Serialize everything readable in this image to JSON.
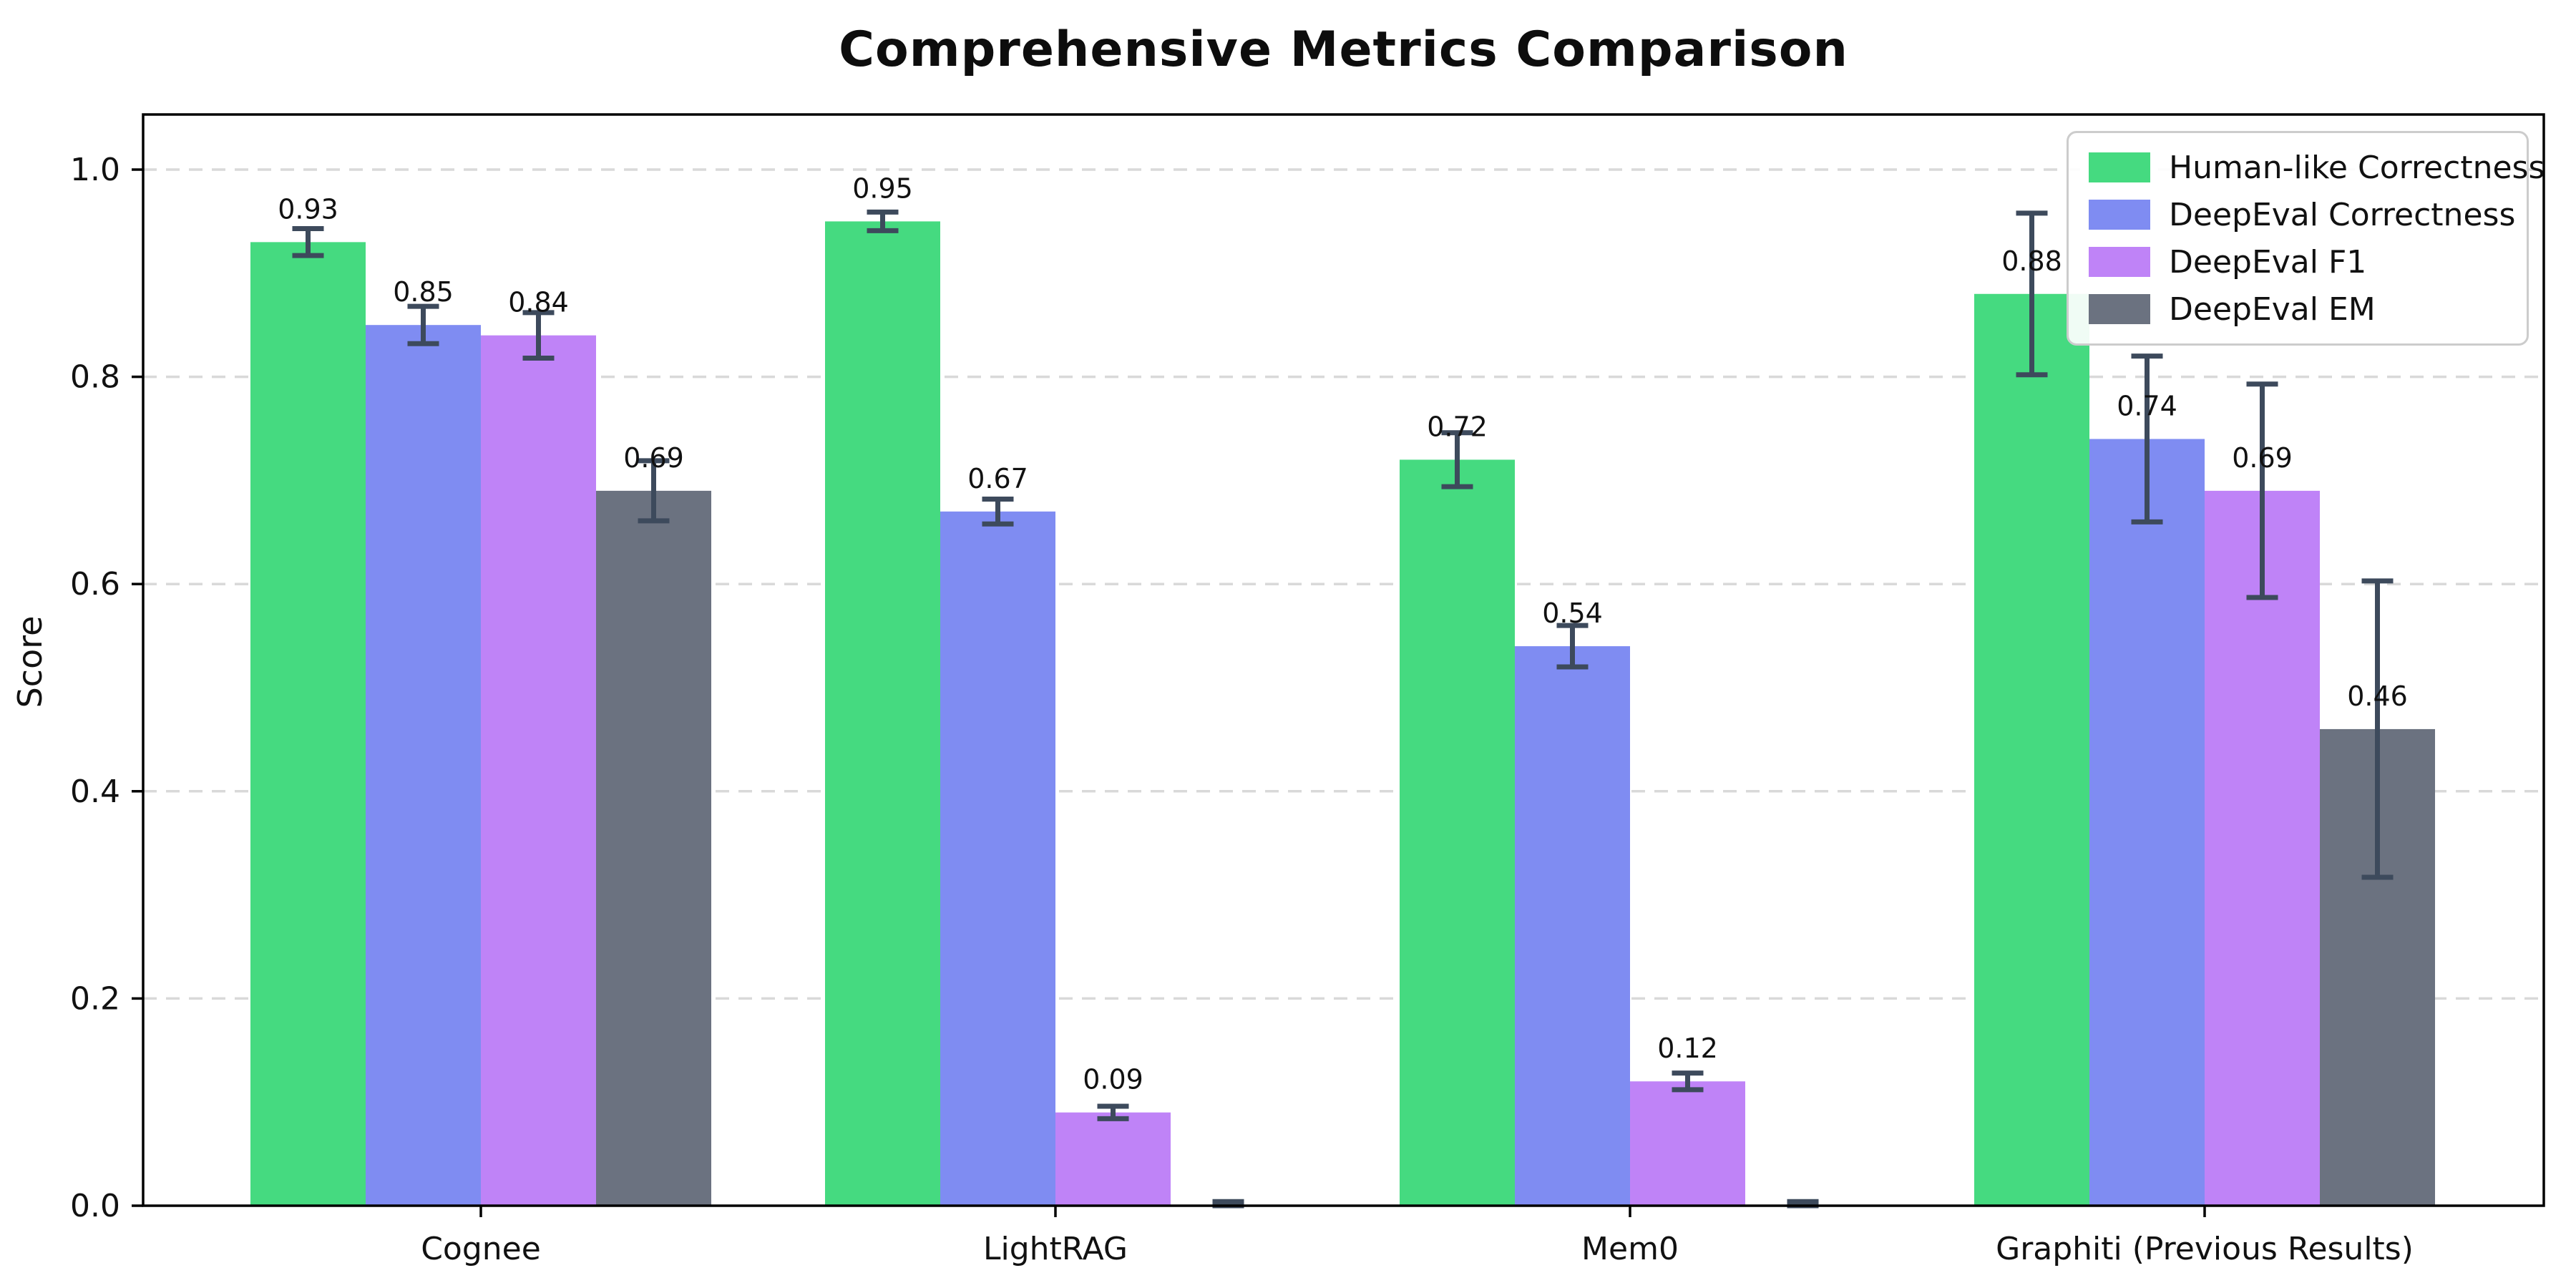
{
  "chart_data": {
    "type": "bar",
    "title": "Comprehensive Metrics Comparison",
    "ylabel": "Score",
    "xlabel": "",
    "categories": [
      "Cognee",
      "LightRAG",
      "Mem0",
      "Graphiti (Previous Results)"
    ],
    "series": [
      {
        "name": "Human-like Correctness",
        "color": "#45da80",
        "values": [
          0.93,
          0.95,
          0.72,
          0.88
        ],
        "errors": [
          0.013,
          0.009,
          0.026,
          0.078
        ],
        "labels": [
          "0.93",
          "0.95",
          "0.72",
          "0.88"
        ]
      },
      {
        "name": "DeepEval Correctness",
        "color": "#7f8cf2",
        "values": [
          0.85,
          0.67,
          0.54,
          0.74
        ],
        "errors": [
          0.018,
          0.012,
          0.02,
          0.08
        ],
        "labels": [
          "0.85",
          "0.67",
          "0.54",
          "0.74"
        ]
      },
      {
        "name": "DeepEval F1",
        "color": "#bf83f7",
        "values": [
          0.84,
          0.09,
          0.12,
          0.69
        ],
        "errors": [
          0.022,
          0.006,
          0.008,
          0.103
        ],
        "labels": [
          "0.84",
          "0.09",
          "0.12",
          "0.69"
        ]
      },
      {
        "name": "DeepEval EM",
        "color": "#6b7280",
        "values": [
          0.69,
          0.0,
          0.0,
          0.46
        ],
        "errors": [
          0.029,
          0.004,
          0.004,
          0.143
        ],
        "labels": [
          "0.69",
          "",
          "",
          "0.46"
        ]
      }
    ],
    "yticks": [
      0.0,
      0.2,
      0.4,
      0.6,
      0.8,
      1.0
    ],
    "ytick_labels": [
      "0.0",
      "0.2",
      "0.4",
      "0.6",
      "0.8",
      "1.0"
    ],
    "ylim": [
      0,
      1.053
    ],
    "grid": {
      "axis": "y",
      "style": "dashed",
      "color": "#d9d9d9"
    },
    "legend": {
      "position": "upper right",
      "border_color": "#cccccc"
    },
    "error_bar_color": "#3d4a5c",
    "spine_color": "#000000"
  }
}
